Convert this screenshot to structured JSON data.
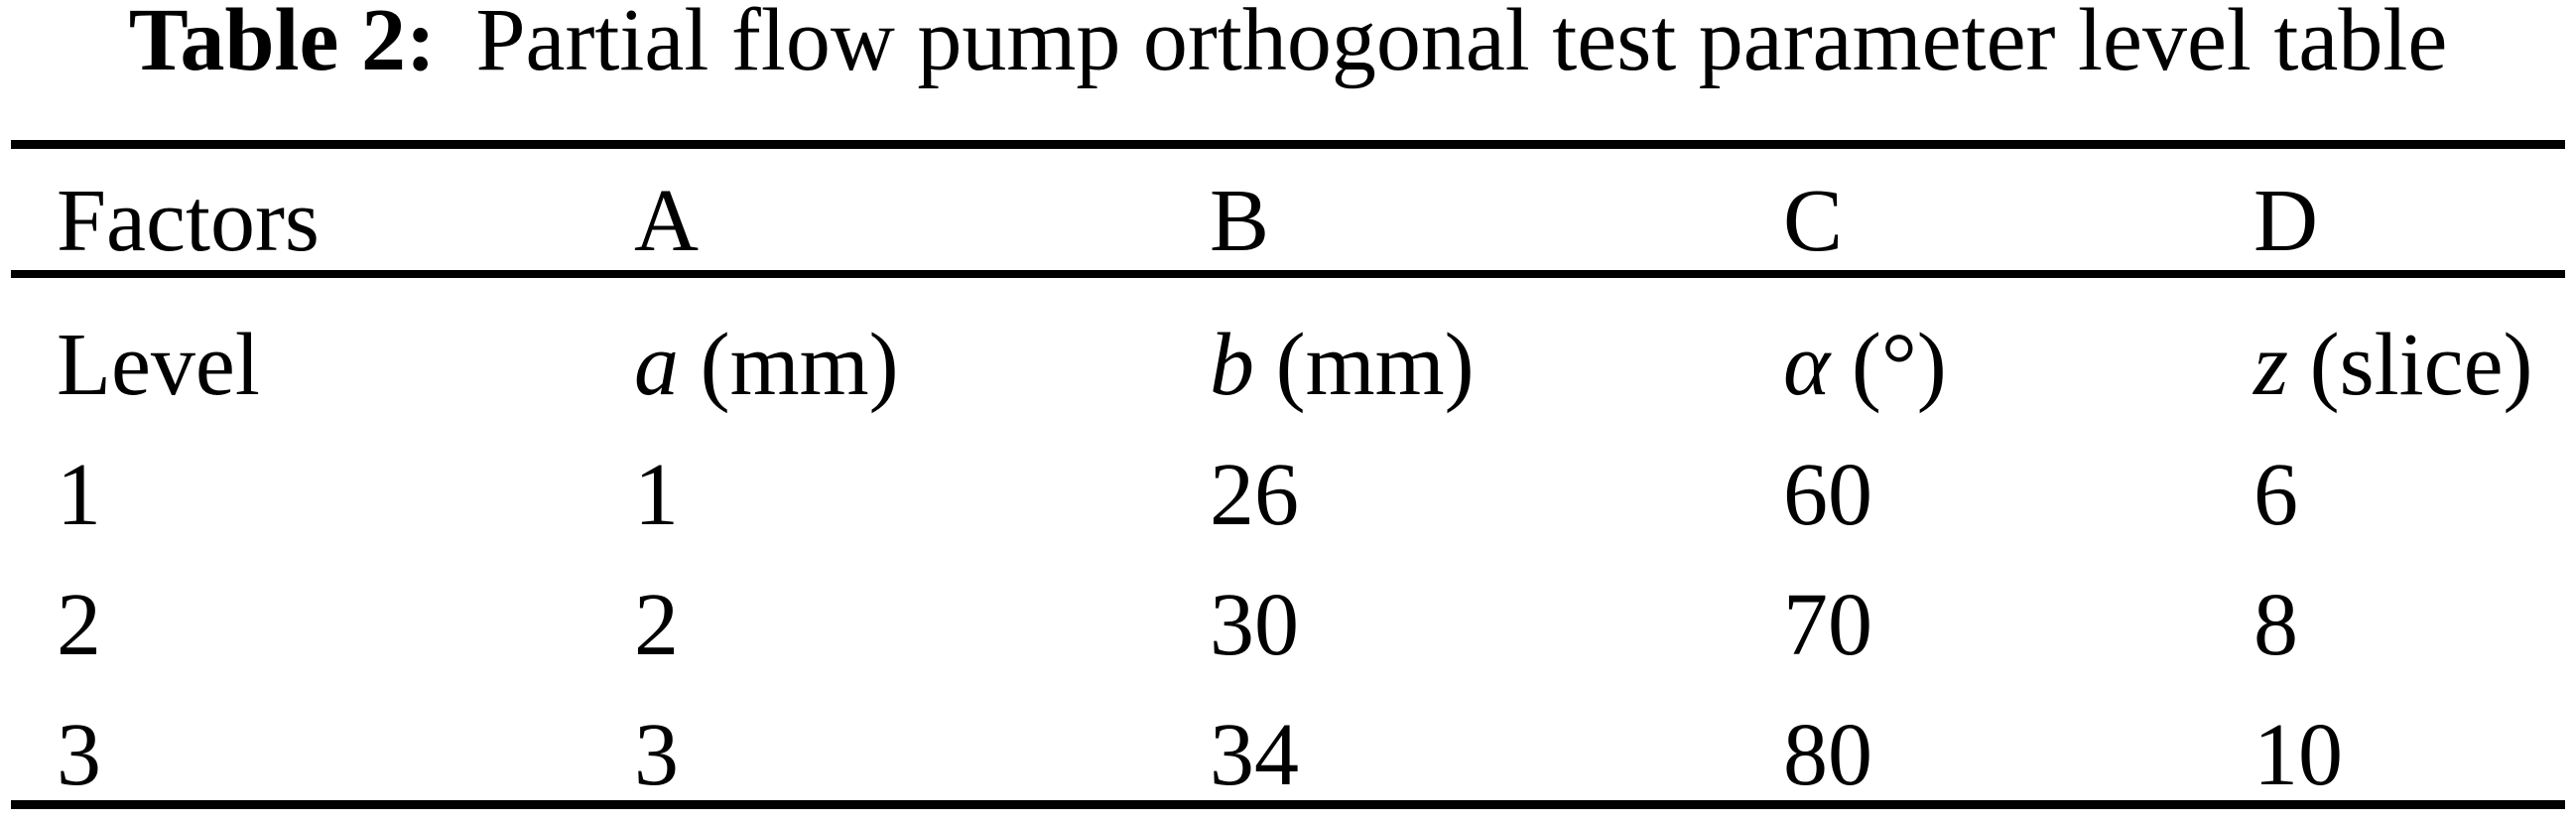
{
  "caption": {
    "label": "Table 2:",
    "text": "Partial flow pump orthogonal test parameter level table"
  },
  "table": {
    "columns": [
      "Factors",
      "A",
      "B",
      "C",
      "D"
    ],
    "unit_row": {
      "row_label": "Level",
      "cells": [
        {
          "symbol": "a",
          "unit": "(mm)"
        },
        {
          "symbol": "b",
          "unit": "(mm)"
        },
        {
          "symbol": "α",
          "unit": "(°)"
        },
        {
          "symbol": "z",
          "unit": "(slice)"
        }
      ]
    },
    "rows": [
      {
        "level": "1",
        "values": [
          "1",
          "26",
          "60",
          "6"
        ]
      },
      {
        "level": "2",
        "values": [
          "2",
          "30",
          "70",
          "8"
        ]
      },
      {
        "level": "3",
        "values": [
          "3",
          "34",
          "80",
          "10"
        ]
      }
    ]
  },
  "colors": {
    "background": "#ffffff",
    "text": "#000000",
    "rule": "#000000"
  }
}
